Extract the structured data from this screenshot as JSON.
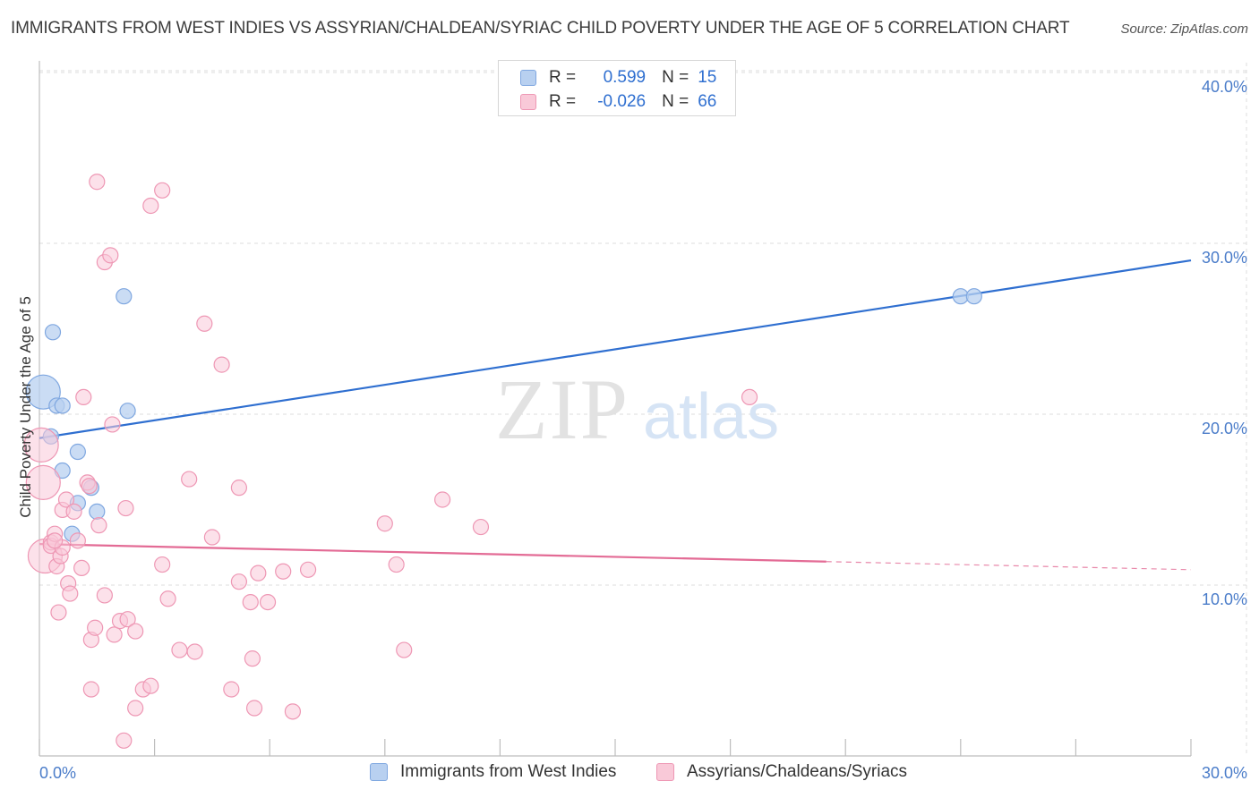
{
  "title": "IMMIGRANTS FROM WEST INDIES VS ASSYRIAN/CHALDEAN/SYRIAC CHILD POVERTY UNDER THE AGE OF 5 CORRELATION CHART",
  "source": "Source: ZipAtlas.com",
  "watermark": {
    "zip": "ZIP",
    "atlas": "atlas"
  },
  "legend": {
    "series1": {
      "r_label": "R =",
      "r_value": "0.599",
      "n_label": "N =",
      "n_value": "15"
    },
    "series2": {
      "r_label": "R =",
      "r_value": "-0.026",
      "n_label": "N =",
      "n_value": "66"
    }
  },
  "bottom_legend": {
    "series1": "Immigrants from West Indies",
    "series2": "Assyrians/Chaldeans/Syriacs"
  },
  "colors": {
    "blue_fill": "#b8d0f0",
    "blue_stroke": "#7fa7e0",
    "blue_line": "#2f6fd0",
    "pink_fill": "#f9c9d8",
    "pink_stroke": "#ee97b4",
    "pink_line": "#e36b95",
    "tick_color": "#4a7cc9",
    "grid": "#dcdcdc"
  },
  "chart_data": {
    "type": "scatter",
    "title": "IMMIGRANTS FROM WEST INDIES VS ASSYRIAN/CHALDEAN/SYRIAC CHILD POVERTY UNDER THE AGE OF 5 CORRELATION CHART",
    "xlabel": "",
    "ylabel": "Child Poverty Under the Age of 5",
    "xlim": [
      0,
      30
    ],
    "ylim": [
      0,
      40
    ],
    "x_ticks": [
      "0.0%",
      "30.0%"
    ],
    "y_ticks": [
      {
        "value": 10,
        "label": "10.0%"
      },
      {
        "value": 20,
        "label": "20.0%"
      },
      {
        "value": 30,
        "label": "30.0%"
      },
      {
        "value": 40,
        "label": "40.0%"
      }
    ],
    "series": [
      {
        "name": "Immigrants from West Indies",
        "color": "blue",
        "points": [
          [
            0.1,
            21.3,
            "large"
          ],
          [
            0.3,
            18.7
          ],
          [
            0.35,
            24.8
          ],
          [
            0.45,
            20.5
          ],
          [
            0.6,
            20.5
          ],
          [
            0.6,
            16.7
          ],
          [
            1.0,
            17.8
          ],
          [
            1.35,
            15.7
          ],
          [
            1.0,
            14.8
          ],
          [
            0.85,
            13.0
          ],
          [
            1.5,
            14.3
          ],
          [
            2.2,
            26.9
          ],
          [
            2.3,
            20.2
          ],
          [
            24.0,
            26.9
          ],
          [
            24.35,
            26.9
          ]
        ],
        "trend": {
          "x": [
            0,
            30
          ],
          "y": [
            18.6,
            29.0
          ],
          "dashed_from": null
        }
      },
      {
        "name": "Assyrians/Chaldeans/Syriacs",
        "color": "pink",
        "points": [
          [
            0.05,
            18.2,
            "large"
          ],
          [
            0.1,
            16.0,
            "large"
          ],
          [
            0.15,
            11.7,
            "large"
          ],
          [
            0.3,
            12.5
          ],
          [
            0.3,
            12.3
          ],
          [
            0.4,
            13.0
          ],
          [
            0.45,
            11.1
          ],
          [
            0.5,
            8.4
          ],
          [
            0.55,
            11.7
          ],
          [
            0.6,
            14.4
          ],
          [
            0.6,
            12.2
          ],
          [
            0.7,
            15.0
          ],
          [
            0.75,
            10.1
          ],
          [
            0.8,
            9.5
          ],
          [
            0.9,
            14.3
          ],
          [
            1.0,
            12.6
          ],
          [
            1.1,
            11.0
          ],
          [
            1.15,
            21.0
          ],
          [
            1.25,
            16.0
          ],
          [
            1.3,
            15.8
          ],
          [
            1.35,
            3.9
          ],
          [
            1.35,
            6.8
          ],
          [
            1.45,
            7.5
          ],
          [
            1.5,
            33.6
          ],
          [
            1.55,
            13.5
          ],
          [
            1.7,
            9.4
          ],
          [
            1.7,
            28.9
          ],
          [
            1.85,
            29.3
          ],
          [
            1.9,
            19.4
          ],
          [
            1.95,
            7.1
          ],
          [
            2.1,
            7.9
          ],
          [
            2.2,
            0.9
          ],
          [
            2.25,
            14.5
          ],
          [
            2.3,
            8.0
          ],
          [
            2.5,
            7.3
          ],
          [
            2.5,
            2.8
          ],
          [
            2.7,
            3.9
          ],
          [
            2.9,
            4.1
          ],
          [
            3.2,
            33.1
          ],
          [
            3.2,
            11.2
          ],
          [
            3.35,
            9.2
          ],
          [
            3.65,
            6.2
          ],
          [
            3.9,
            16.2
          ],
          [
            4.05,
            6.1
          ],
          [
            4.3,
            25.3
          ],
          [
            4.5,
            12.8
          ],
          [
            4.75,
            22.9
          ],
          [
            5.0,
            3.9
          ],
          [
            5.2,
            15.7
          ],
          [
            5.2,
            10.2
          ],
          [
            5.5,
            9.0
          ],
          [
            5.55,
            5.7
          ],
          [
            5.6,
            2.8
          ],
          [
            5.7,
            10.7
          ],
          [
            5.95,
            9.0
          ],
          [
            6.35,
            10.8
          ],
          [
            6.6,
            2.6
          ],
          [
            7.0,
            10.9
          ],
          [
            9.0,
            13.6
          ],
          [
            9.3,
            11.2
          ],
          [
            9.5,
            6.2
          ],
          [
            10.5,
            15.0
          ],
          [
            11.5,
            13.4
          ],
          [
            18.5,
            21.0
          ],
          [
            0.4,
            12.6
          ],
          [
            2.9,
            32.2
          ]
        ],
        "trend": {
          "x": [
            0,
            30
          ],
          "y": [
            12.4,
            10.9
          ],
          "dashed_from": 20.5
        }
      }
    ]
  }
}
